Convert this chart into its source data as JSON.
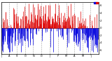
{
  "n_points": 365,
  "blue_color": "#0000dd",
  "red_color": "#dd0000",
  "bg_color": "#ffffff",
  "grid_color": "#888888",
  "zero_line_color": "#000000",
  "border_color": "#000000",
  "ylim": [
    -70,
    70
  ],
  "yticks": [
    -60,
    -40,
    -20,
    0,
    20,
    40,
    60
  ],
  "ytick_labels": [
    "6",
    "4",
    "2",
    "0",
    "2",
    "4",
    "6"
  ],
  "month_starts": [
    0,
    31,
    59,
    90,
    120,
    151,
    181,
    212,
    243,
    273,
    304,
    334
  ],
  "month_labels": [
    "J",
    "A",
    "S",
    "O",
    "N",
    "D",
    "J",
    "F",
    "M",
    "A",
    "M",
    "J"
  ],
  "seed": 123,
  "seasonal_amplitude": 20,
  "seasonal_phase": 90,
  "noise_scale": 28
}
